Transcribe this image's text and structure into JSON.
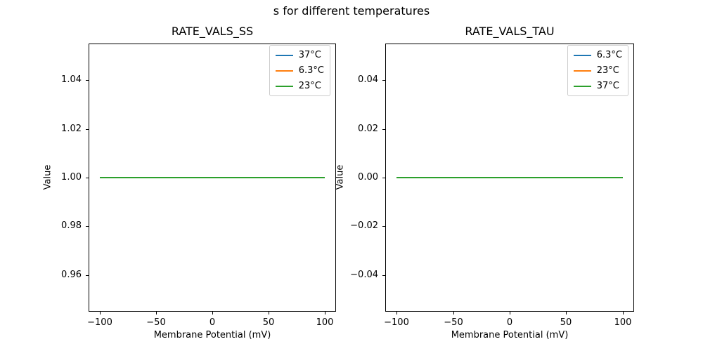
{
  "figure": {
    "suptitle": "s for different temperatures",
    "background": "#ffffff",
    "text_color": "#000000"
  },
  "chart_data": [
    {
      "type": "line",
      "title": "RATE_VALS_SS",
      "xlabel": "Membrane Potential (mV)",
      "ylabel": "Value",
      "xlim": [
        -110,
        110
      ],
      "ylim": [
        0.945,
        1.055
      ],
      "grid": false,
      "legend_position": "upper right",
      "x_ticks": [
        -100,
        -50,
        0,
        50,
        100
      ],
      "x_tick_labels": [
        "−100",
        "−50",
        "0",
        "50",
        "100"
      ],
      "y_ticks": [
        0.96,
        0.98,
        1.0,
        1.02,
        1.04
      ],
      "y_tick_labels": [
        "0.96",
        "0.98",
        "1.00",
        "1.02",
        "1.04"
      ],
      "x": [
        -100,
        100
      ],
      "series": [
        {
          "name": "37°C",
          "color": "#1f77b4",
          "values": [
            1.0,
            1.0
          ]
        },
        {
          "name": "6.3°C",
          "color": "#ff7f0e",
          "values": [
            1.0,
            1.0
          ]
        },
        {
          "name": "23°C",
          "color": "#2ca02c",
          "values": [
            1.0,
            1.0
          ]
        }
      ]
    },
    {
      "type": "line",
      "title": "RATE_VALS_TAU",
      "xlabel": "Membrane Potential (mV)",
      "ylabel": "Value",
      "xlim": [
        -110,
        110
      ],
      "ylim": [
        -0.055,
        0.055
      ],
      "grid": false,
      "legend_position": "upper right",
      "x_ticks": [
        -100,
        -50,
        0,
        50,
        100
      ],
      "x_tick_labels": [
        "−100",
        "−50",
        "0",
        "50",
        "100"
      ],
      "y_ticks": [
        -0.04,
        -0.02,
        0.0,
        0.02,
        0.04
      ],
      "y_tick_labels": [
        "−0.04",
        "−0.02",
        "0.00",
        "0.02",
        "0.04"
      ],
      "x": [
        -100,
        100
      ],
      "series": [
        {
          "name": "6.3°C",
          "color": "#1f77b4",
          "values": [
            0.0,
            0.0
          ]
        },
        {
          "name": "23°C",
          "color": "#ff7f0e",
          "values": [
            0.0,
            0.0
          ]
        },
        {
          "name": "37°C",
          "color": "#2ca02c",
          "values": [
            0.0,
            0.0
          ]
        }
      ]
    }
  ]
}
